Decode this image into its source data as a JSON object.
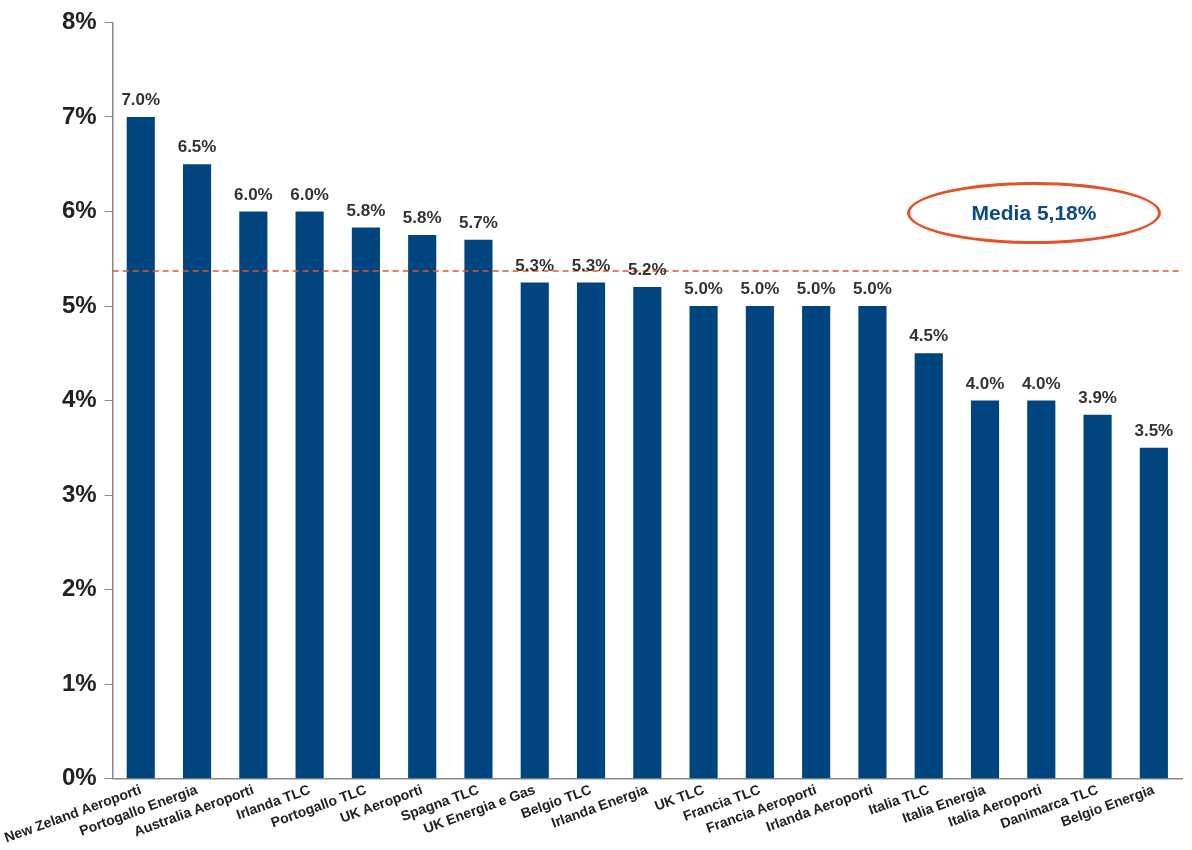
{
  "chart_data": {
    "type": "bar",
    "categories": [
      "New Zeland Aeroporti",
      "Portogallo Energia",
      "Australia Aeroporti",
      "Irlanda TLC",
      "Portogallo TLC",
      "UK Aeroporti",
      "Spagna TLC",
      "UK Energia e Gas",
      "Belgio TLC",
      "Irlanda Energia",
      "UK TLC",
      "Francia TLC",
      "Francia Aeroporti",
      "Irlanda Aeroporti",
      "Italia TLC",
      "Italia Energia",
      "Italia Aeroporti",
      "Danimarca TLC",
      "Belgio Energia"
    ],
    "values": [
      7.0,
      6.5,
      6.0,
      6.0,
      5.83,
      5.75,
      5.7,
      5.25,
      5.25,
      5.2,
      5.0,
      5.0,
      5.0,
      5.0,
      4.5,
      4.0,
      4.0,
      3.85,
      3.5
    ],
    "value_labels": [
      "7.0%",
      "6.5%",
      "6.0%",
      "6.0%",
      "5.8%",
      "5.8%",
      "5.7%",
      "5.3%",
      "5.3%",
      "5.2%",
      "5.0%",
      "5.0%",
      "5.0%",
      "5.0%",
      "4.5%",
      "4.0%",
      "4.0%",
      "3.9%",
      "3.5%"
    ],
    "color": "#00457f",
    "ylim": [
      0,
      8
    ],
    "yticks": [
      {
        "value": 0,
        "label": "0%"
      },
      {
        "value": 1,
        "label": "1%"
      },
      {
        "value": 2,
        "label": "2%"
      },
      {
        "value": 3,
        "label": "3%"
      },
      {
        "value": 4,
        "label": "4%"
      },
      {
        "value": 5,
        "label": "5%"
      },
      {
        "value": 6,
        "label": "6%"
      },
      {
        "value": 7,
        "label": "7%"
      },
      {
        "value": 8,
        "label": "8%"
      }
    ],
    "ref_lines": [
      {
        "axis": "y",
        "value": 5.37,
        "color": "#e8502a",
        "line_style": "dashed"
      }
    ],
    "annotations": [
      "Media 5,18%"
    ],
    "grid": false,
    "legend": false
  }
}
